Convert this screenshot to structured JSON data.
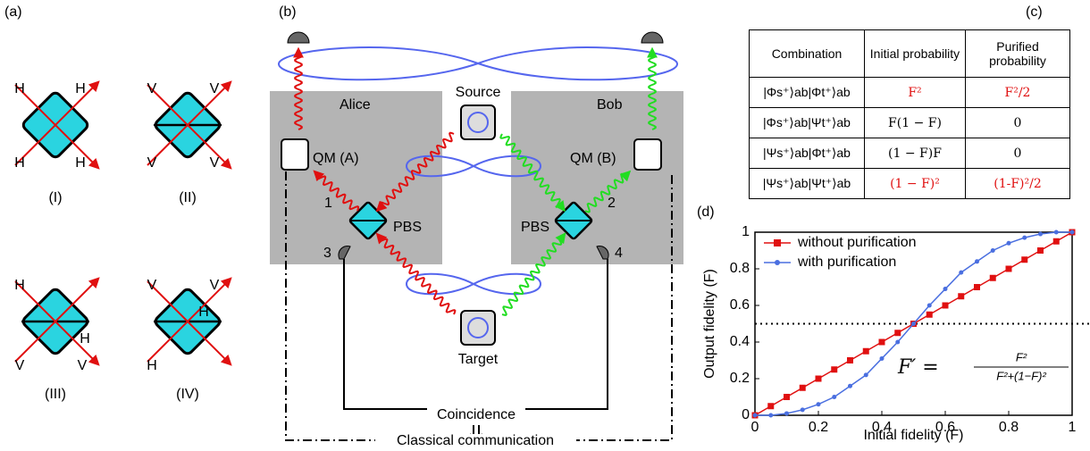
{
  "panel_a": {
    "label": "(a)",
    "diagrams": [
      {
        "label": "(I)",
        "ports": [
          "H",
          "H",
          "H",
          "H"
        ]
      },
      {
        "label": "(II)",
        "ports": [
          "V",
          "V",
          "V",
          "V"
        ]
      },
      {
        "label": "(III)",
        "ports": [
          "H",
          "H",
          "V",
          "V"
        ]
      },
      {
        "label": "(IV)",
        "ports": [
          "V",
          "V",
          "H",
          "H"
        ]
      }
    ]
  },
  "panel_b": {
    "label": "(b)",
    "alice": "Alice",
    "bob": "Bob",
    "source": "Source",
    "target": "Target",
    "qm_a": "QM (A)",
    "qm_b": "QM (B)",
    "pbs_left": "PBS",
    "pbs_right": "PBS",
    "port_1": "1",
    "port_2": "2",
    "port_3": "3",
    "port_4": "4",
    "coincidence": "Coincidence",
    "classical": "Classical communication"
  },
  "panel_c": {
    "label": "(c)",
    "header": [
      "Combination",
      "Initial probability",
      "Purified probability"
    ],
    "rows": [
      {
        "cells": [
          "|Φs⁺⟩ab|Φt⁺⟩ab",
          "F²",
          "F²/2"
        ],
        "color": "#e01010"
      },
      {
        "cells": [
          "|Φs⁺⟩ab|Ψt⁺⟩ab",
          "F(1 − F)",
          "0"
        ],
        "color": "#000000"
      },
      {
        "cells": [
          "|Ψs⁺⟩ab|Φt⁺⟩ab",
          "(1 − F)F",
          "0"
        ],
        "color": "#000000"
      },
      {
        "cells": [
          "|Ψs⁺⟩ab|Ψt⁺⟩ab",
          "(1 − F)²",
          "(1-F)²/2"
        ],
        "color": "#e01010"
      }
    ]
  },
  "chart_data": {
    "type": "line",
    "label": "(d)",
    "x_label": "Initial fidelity (F)",
    "y_label": "Output fidelity (F)",
    "x": [
      0,
      0.05,
      0.1,
      0.15,
      0.2,
      0.25,
      0.3,
      0.35,
      0.4,
      0.45,
      0.5,
      0.55,
      0.6,
      0.65,
      0.7,
      0.75,
      0.8,
      0.85,
      0.9,
      0.95,
      1
    ],
    "series": [
      {
        "name": "without purification",
        "color": "#e01010",
        "marker": "square",
        "values": [
          0,
          0.05,
          0.1,
          0.15,
          0.2,
          0.25,
          0.3,
          0.35,
          0.4,
          0.45,
          0.5,
          0.55,
          0.6,
          0.65,
          0.7,
          0.75,
          0.8,
          0.85,
          0.9,
          0.95,
          1
        ]
      },
      {
        "name": "with purification",
        "color": "#4a6fe0",
        "marker": "circle",
        "values": [
          0,
          0,
          0.01,
          0.03,
          0.06,
          0.1,
          0.16,
          0.22,
          0.31,
          0.4,
          0.5,
          0.6,
          0.69,
          0.78,
          0.84,
          0.9,
          0.94,
          0.97,
          0.99,
          1,
          1
        ]
      }
    ],
    "xlim": [
      0,
      1
    ],
    "ylim": [
      0,
      1
    ],
    "xticks": [
      0,
      0.2,
      0.4,
      0.6,
      0.8,
      1
    ],
    "yticks": [
      0,
      0.2,
      0.4,
      0.6,
      0.8,
      1
    ],
    "hline": 0.5,
    "legend": "top-left",
    "annotation": {
      "lhs": "F′ =",
      "numerator": "F²",
      "denominator": "F²+(1−F)²"
    }
  }
}
